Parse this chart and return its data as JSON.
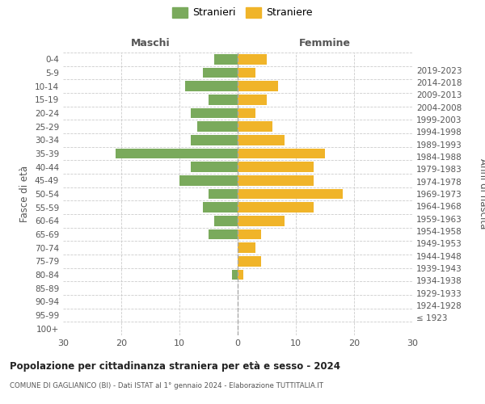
{
  "age_groups": [
    "100+",
    "95-99",
    "90-94",
    "85-89",
    "80-84",
    "75-79",
    "70-74",
    "65-69",
    "60-64",
    "55-59",
    "50-54",
    "45-49",
    "40-44",
    "35-39",
    "30-34",
    "25-29",
    "20-24",
    "15-19",
    "10-14",
    "5-9",
    "0-4"
  ],
  "birth_years": [
    "≤ 1923",
    "1924-1928",
    "1929-1933",
    "1934-1938",
    "1939-1943",
    "1944-1948",
    "1949-1953",
    "1954-1958",
    "1959-1963",
    "1964-1968",
    "1969-1973",
    "1974-1978",
    "1979-1983",
    "1984-1988",
    "1989-1993",
    "1994-1998",
    "1999-2003",
    "2004-2008",
    "2009-2013",
    "2014-2018",
    "2019-2023"
  ],
  "males": [
    0,
    0,
    0,
    0,
    1,
    0,
    0,
    5,
    4,
    6,
    5,
    10,
    8,
    21,
    8,
    7,
    8,
    5,
    9,
    6,
    4
  ],
  "females": [
    0,
    0,
    0,
    0,
    1,
    4,
    3,
    4,
    8,
    13,
    18,
    13,
    13,
    15,
    8,
    6,
    3,
    5,
    7,
    3,
    5
  ],
  "male_color": "#7aaa5c",
  "female_color": "#f0b429",
  "background_color": "#ffffff",
  "grid_color": "#cccccc",
  "title": "Popolazione per cittadinanza straniera per età e sesso - 2024",
  "subtitle": "COMUNE DI GAGLIANICO (BI) - Dati ISTAT al 1° gennaio 2024 - Elaborazione TUTTITALIA.IT",
  "xlabel_left": "Maschi",
  "xlabel_right": "Femmine",
  "ylabel_left": "Fasce di età",
  "ylabel_right": "Anni di nascita",
  "legend_male": "Stranieri",
  "legend_female": "Straniere",
  "xlim": 30,
  "tick_step": 10
}
